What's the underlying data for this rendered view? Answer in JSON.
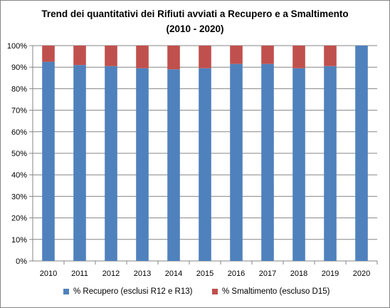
{
  "chart_data": {
    "type": "bar",
    "stacked": true,
    "title_line1": "Trend dei quantitativi dei Rifiuti avviati a Recupero e a Smaltimento",
    "title_line2": "(2010 - 2020)",
    "categories": [
      "2010",
      "2011",
      "2012",
      "2013",
      "2014",
      "2015",
      "2016",
      "2017",
      "2018",
      "2019",
      "2020"
    ],
    "series": [
      {
        "name": "% Recupero (esclusi R12 e R13)",
        "color": "#4F81BD",
        "values": [
          92.5,
          91,
          90.5,
          89.5,
          89,
          89.5,
          91.5,
          91.5,
          89.5,
          90.5,
          100
        ]
      },
      {
        "name": "% Smaltimento (escluso D15)",
        "color": "#C0504D",
        "values": [
          7.5,
          9,
          9.5,
          10.5,
          11,
          10.5,
          8.5,
          8.5,
          10.5,
          9.5,
          0
        ]
      }
    ],
    "ylim": [
      0,
      100
    ],
    "yticks": [
      "0%",
      "10%",
      "20%",
      "30%",
      "40%",
      "50%",
      "60%",
      "70%",
      "80%",
      "90%",
      "100%"
    ],
    "grid": true,
    "legend_position": "bottom"
  }
}
